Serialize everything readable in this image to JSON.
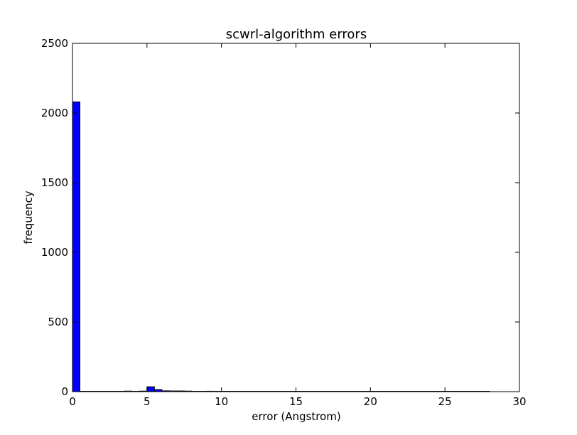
{
  "chart_data": {
    "type": "bar",
    "title": "scwrl-algorithm errors",
    "xlabel": "error (Angstrom)",
    "ylabel": "frequency",
    "xlim": [
      0,
      30
    ],
    "ylim": [
      0,
      2500
    ],
    "xticks": [
      0,
      5,
      10,
      15,
      20,
      25,
      30
    ],
    "yticks": [
      0,
      500,
      1000,
      1500,
      2000,
      2500
    ],
    "grid": false,
    "bar_color": "#0000ff",
    "bar_edge_color": "#000000",
    "bar_width": 0.5,
    "bins": [
      {
        "x": 0.0,
        "value": 2080
      },
      {
        "x": 0.5,
        "value": 0
      },
      {
        "x": 1.0,
        "value": 0
      },
      {
        "x": 1.5,
        "value": 0
      },
      {
        "x": 2.0,
        "value": 0
      },
      {
        "x": 2.5,
        "value": 0
      },
      {
        "x": 3.0,
        "value": 0
      },
      {
        "x": 3.5,
        "value": 4
      },
      {
        "x": 4.0,
        "value": 0
      },
      {
        "x": 4.5,
        "value": 4
      },
      {
        "x": 5.0,
        "value": 35
      },
      {
        "x": 5.5,
        "value": 15
      },
      {
        "x": 6.0,
        "value": 6
      },
      {
        "x": 6.5,
        "value": 5
      },
      {
        "x": 7.0,
        "value": 5
      },
      {
        "x": 7.5,
        "value": 4
      },
      {
        "x": 8.0,
        "value": 0
      },
      {
        "x": 8.5,
        "value": 0
      },
      {
        "x": 9.0,
        "value": 3
      },
      {
        "x": 9.5,
        "value": 2
      },
      {
        "x": 10.0,
        "value": 0
      },
      {
        "x": 27.5,
        "value": 0
      }
    ]
  }
}
